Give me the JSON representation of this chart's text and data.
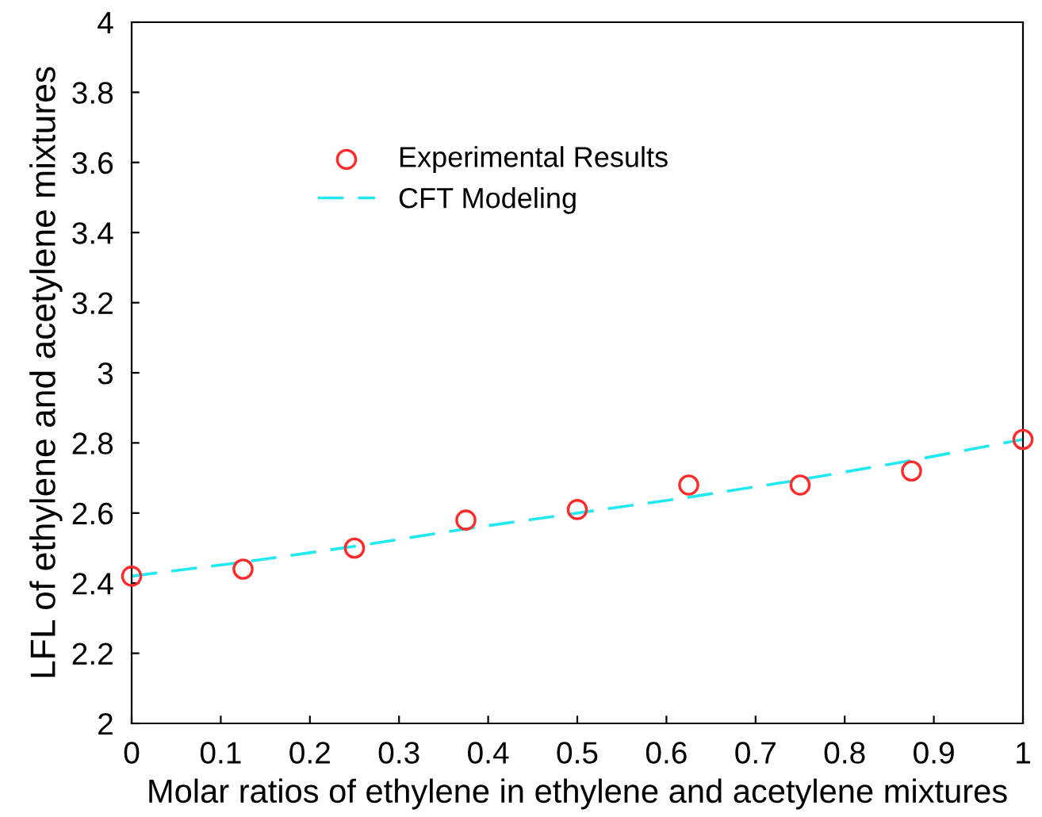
{
  "chart_data": {
    "type": "scatter",
    "xlabel": "Molar ratios of ethylene in ethylene and acetylene mixtures",
    "ylabel": "LFL of ethylene and acetylene mixtures",
    "xlim": [
      0,
      1
    ],
    "ylim": [
      2,
      4
    ],
    "xticks": [
      0,
      0.1,
      0.2,
      0.3,
      0.4,
      0.5,
      0.6,
      0.7,
      0.8,
      0.9,
      1
    ],
    "yticks": [
      2,
      2.2,
      2.4,
      2.6,
      2.8,
      3,
      3.2,
      3.4,
      3.6,
      3.8,
      4
    ],
    "grid": false,
    "legend": "top",
    "series": [
      {
        "name": "Experimental Results",
        "color": "#ff2a2a",
        "marker": "circle",
        "x": [
          0,
          0.125,
          0.25,
          0.375,
          0.5,
          0.625,
          0.75,
          0.875,
          1
        ],
        "values": [
          2.42,
          2.44,
          2.5,
          2.58,
          2.61,
          2.68,
          2.68,
          2.72,
          2.81
        ]
      },
      {
        "name": "CFT Modeling",
        "type": "line",
        "color": "#22e8f0",
        "line_style": "dashed",
        "x": [
          0,
          0.125,
          0.25,
          0.375,
          0.5,
          0.625,
          0.75,
          0.875,
          1
        ],
        "values": [
          2.42,
          2.46,
          2.505,
          2.555,
          2.6,
          2.645,
          2.695,
          2.75,
          2.81
        ]
      }
    ]
  }
}
